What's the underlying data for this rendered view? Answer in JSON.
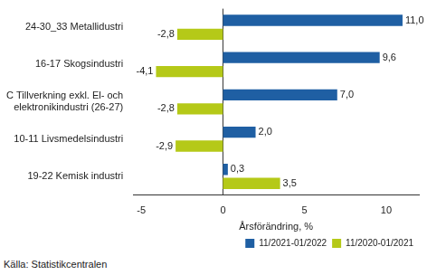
{
  "chart_data": {
    "type": "bar",
    "orientation": "horizontal",
    "categories": [
      "24-30_33 Metallidustri",
      "16-17 Skogsindustri",
      "C Tillverkning exkl. El- och elektronikindustri (26-27)",
      "10-11 Livsmedelsindustri",
      "19-22 Kemisk industri"
    ],
    "series": [
      {
        "name": "11/2021-01/2022",
        "color": "#1f5fa3",
        "values": [
          11.0,
          9.6,
          7.0,
          2.0,
          0.3
        ],
        "value_labels": [
          "11,0",
          "9,6",
          "7,0",
          "2,0",
          "0,3"
        ]
      },
      {
        "name": "11/2020-01/2021",
        "color": "#b5c918",
        "values": [
          -2.8,
          -4.1,
          -2.8,
          -2.9,
          3.5
        ],
        "value_labels": [
          "-2,8",
          "-4,1",
          "-2,8",
          "-2,9",
          "3,5"
        ]
      }
    ],
    "x_label": "Årsförändring, %",
    "xlim": [
      -5.5,
      12
    ],
    "xticks": [
      -5,
      0,
      5,
      10
    ],
    "grid": false,
    "legend": "lower right",
    "data_labels": true,
    "source": "Källa: Statistikcentralen"
  }
}
